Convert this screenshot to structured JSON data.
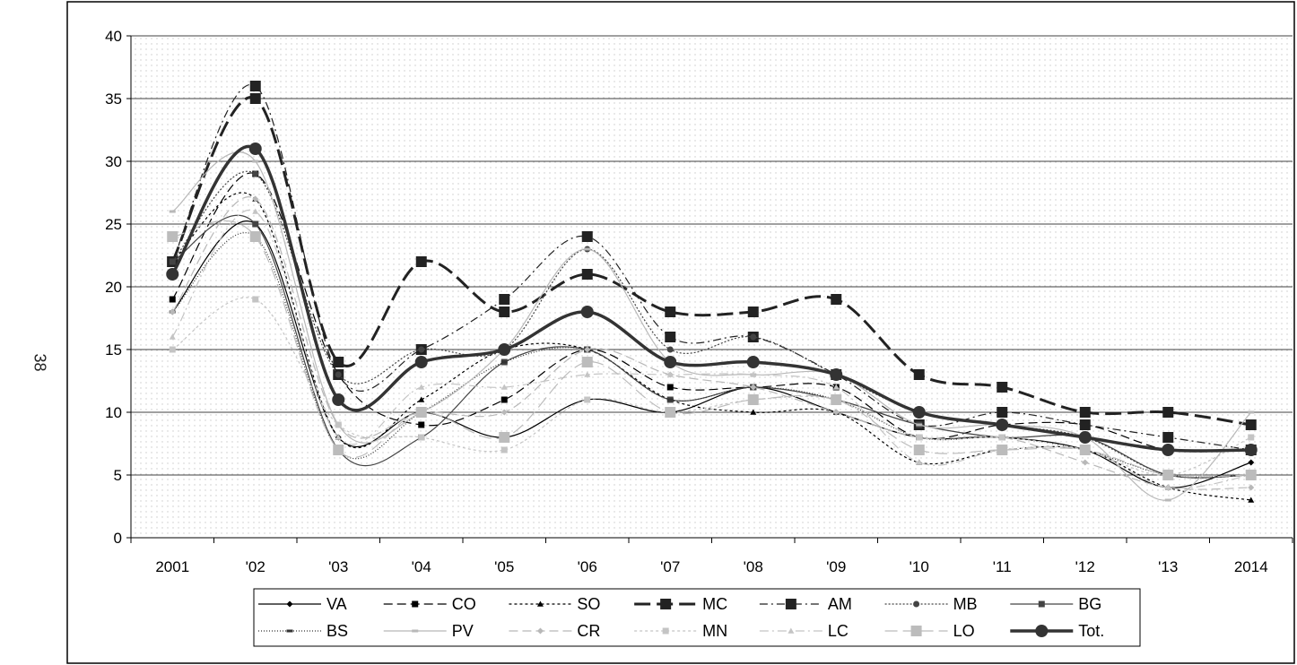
{
  "page_number": "38",
  "chart_data": {
    "type": "line",
    "title": "",
    "xlabel": "",
    "ylabel": "",
    "categories": [
      "2001",
      "'02",
      "'03",
      "'04",
      "'05",
      "'06",
      "'07",
      "'08",
      "'09",
      "'10",
      "'11",
      "'12",
      "'13",
      "2014"
    ],
    "ylim": [
      0,
      40
    ],
    "yticks": [
      0,
      5,
      10,
      15,
      20,
      25,
      30,
      35,
      40
    ],
    "grid": "horizontal",
    "plot_background": "light dotted",
    "legend_position": "bottom",
    "series": [
      {
        "name": "VA",
        "color": "#000000",
        "dash": "",
        "marker": "diamond",
        "values": [
          18,
          25,
          8,
          10,
          8,
          11,
          10,
          12,
          10,
          8,
          8,
          7,
          4,
          6
        ]
      },
      {
        "name": "CO",
        "color": "#000000",
        "dash": "10,5",
        "marker": "square",
        "values": [
          19,
          29,
          13,
          9,
          11,
          15,
          12,
          12,
          12,
          8,
          9,
          9,
          7,
          7
        ]
      },
      {
        "name": "SO",
        "color": "#000000",
        "dash": "3,3",
        "marker": "triangle",
        "values": [
          22,
          27,
          8,
          11,
          15,
          15,
          11,
          10,
          10,
          6,
          7,
          7,
          4,
          3
        ]
      },
      {
        "name": "MC",
        "color": "#222222",
        "dash": "18,7",
        "marker": "square",
        "values": [
          22,
          35,
          14,
          22,
          18,
          21,
          18,
          18,
          19,
          13,
          12,
          10,
          10,
          9
        ]
      },
      {
        "name": "AM",
        "color": "#222222",
        "dash": "9,4,2,4",
        "marker": "square",
        "values": [
          22,
          36,
          13,
          15,
          19,
          24,
          16,
          16,
          13,
          9,
          10,
          9,
          8,
          7
        ]
      },
      {
        "name": "MB",
        "color": "#444444",
        "dash": "2,2",
        "marker": "circle",
        "values": [
          22,
          29,
          13,
          15,
          15,
          23,
          15,
          16,
          13,
          10,
          9,
          8,
          5,
          5
        ]
      },
      {
        "name": "BG",
        "color": "#444444",
        "dash": "",
        "marker": "square",
        "values": [
          22,
          25,
          7,
          8,
          14,
          15,
          11,
          12,
          11,
          9,
          8,
          8,
          5,
          5
        ]
      },
      {
        "name": "BS",
        "color": "#333333",
        "dash": "1,2",
        "marker": "dash",
        "values": [
          18,
          24,
          7,
          10,
          14,
          15,
          11,
          12,
          11,
          8,
          8,
          7,
          5,
          5
        ]
      },
      {
        "name": "PV",
        "color": "#b8b8b8",
        "dash": "",
        "marker": "dash",
        "values": [
          26,
          30,
          9,
          10,
          15,
          23,
          14,
          13,
          13,
          9,
          9,
          8,
          3,
          10
        ]
      },
      {
        "name": "CR",
        "color": "#b8b8b8",
        "dash": "10,5",
        "marker": "diamond",
        "values": [
          18,
          27,
          9,
          10,
          10,
          15,
          13,
          12,
          10,
          8,
          8,
          6,
          4,
          4
        ]
      },
      {
        "name": "MN",
        "color": "#c4c4c4",
        "dash": "3,3",
        "marker": "square",
        "values": [
          15,
          19,
          9,
          8,
          7,
          11,
          10,
          11,
          11,
          8,
          8,
          7,
          5,
          8
        ]
      },
      {
        "name": "LC",
        "color": "#c4c4c4",
        "dash": "10,4,2,4",
        "marker": "triangle",
        "values": [
          16,
          26,
          8,
          12,
          12,
          13,
          13,
          13,
          12,
          6,
          7,
          7,
          4,
          5
        ]
      },
      {
        "name": "LO",
        "color": "#bcbcbc",
        "dash": "14,6",
        "marker": "square",
        "values": [
          24,
          24,
          7,
          10,
          8,
          14,
          10,
          11,
          11,
          7,
          7,
          7,
          5,
          5
        ]
      },
      {
        "name": "Tot.",
        "color": "#333333",
        "dash": "",
        "marker": "circle",
        "bold": true,
        "values": [
          21,
          31,
          11,
          14,
          15,
          18,
          14,
          14,
          13,
          10,
          9,
          8,
          7,
          7
        ]
      }
    ]
  }
}
